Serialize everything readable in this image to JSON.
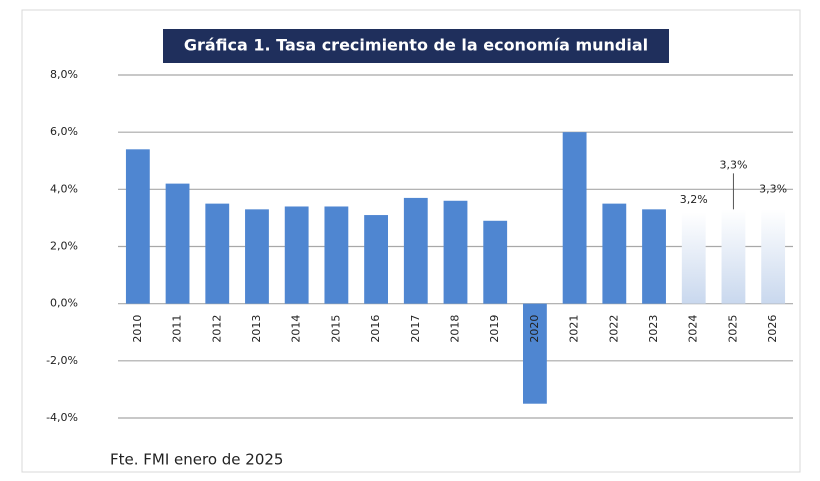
{
  "chart_data": {
    "type": "bar",
    "title": "Gráfica 1. Tasa crecimiento de la economía mundial",
    "categories": [
      "2010",
      "2011",
      "2012",
      "2013",
      "2014",
      "2015",
      "2016",
      "2017",
      "2018",
      "2019",
      "2020",
      "2021",
      "2022",
      "2023",
      "2024",
      "2025",
      "2026"
    ],
    "values": [
      5.4,
      4.2,
      3.5,
      3.3,
      3.4,
      3.4,
      3.1,
      3.7,
      3.6,
      2.9,
      -3.5,
      6.0,
      3.5,
      3.3,
      3.2,
      3.3,
      3.3
    ],
    "value_labels": [
      null,
      null,
      null,
      null,
      null,
      null,
      null,
      null,
      null,
      null,
      null,
      null,
      null,
      null,
      "3,2%",
      "3,3%",
      "3,3%"
    ],
    "colors": [
      "#4f86d1",
      "#4f86d1",
      "#4f86d1",
      "#4f86d1",
      "#4f86d1",
      "#4f86d1",
      "#4f86d1",
      "#4f86d1",
      "#4f86d1",
      "#4f86d1",
      "#4f86d1",
      "#4f86d1",
      "#4f86d1",
      "#4f86d1",
      "#d3dff0",
      "#d3dff0",
      "#d3dff0"
    ],
    "ylim": [
      -4,
      8
    ],
    "yticks": [
      {
        "value": -4,
        "label": "-4,0%"
      },
      {
        "value": -2,
        "label": "-2,0%"
      },
      {
        "value": 0,
        "label": "0,0%"
      },
      {
        "value": 2,
        "label": "2,0%"
      },
      {
        "value": 4,
        "label": "4,0%"
      },
      {
        "value": 6,
        "label": "6,0%"
      },
      {
        "value": 8,
        "label": "8,0%"
      }
    ],
    "grid": true,
    "source": "Fte. FMI enero de 2025"
  }
}
